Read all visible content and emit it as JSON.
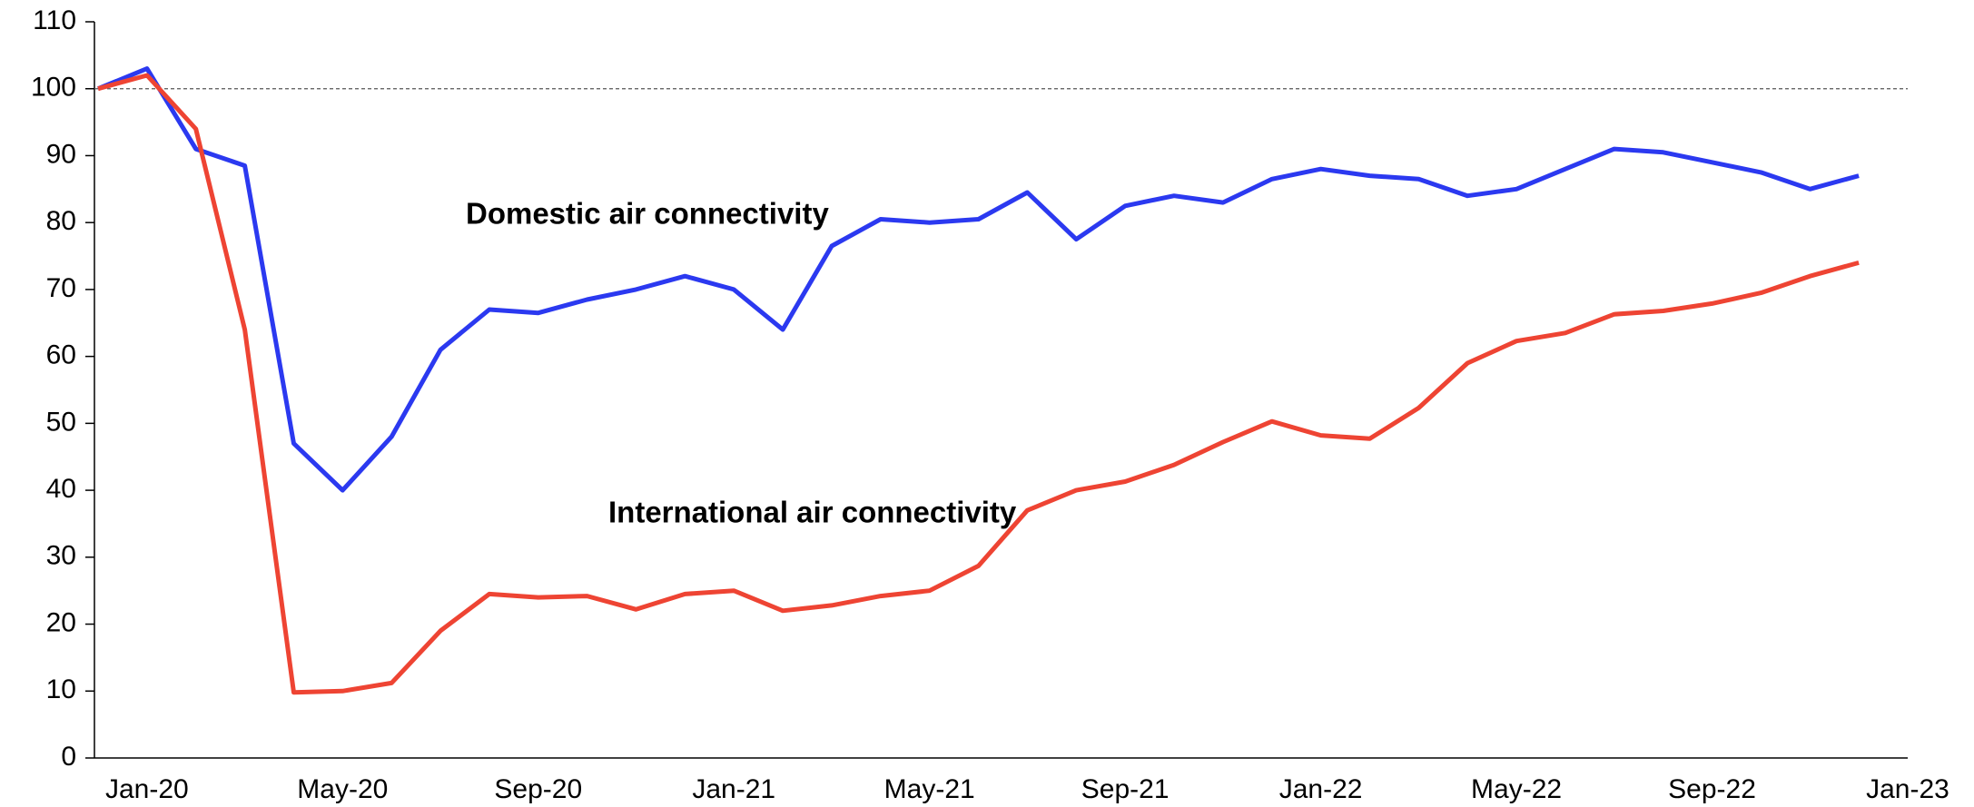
{
  "chart_data": {
    "type": "line",
    "categories": [
      null,
      "Jan-20",
      null,
      null,
      null,
      "May-20",
      null,
      null,
      null,
      "Sep-20",
      null,
      null,
      null,
      "Jan-21",
      null,
      null,
      null,
      "May-21",
      null,
      null,
      null,
      "Sep-21",
      null,
      null,
      null,
      "Jan-22",
      null,
      null,
      null,
      "May-22",
      null,
      null,
      null,
      "Sep-22",
      null,
      null,
      null,
      "Jan-23"
    ],
    "series": [
      {
        "name": "Domestic air connectivity",
        "color": "#2b39f0",
        "values": [
          100,
          103,
          91,
          88.5,
          47,
          40,
          48,
          61,
          67,
          66.5,
          68.5,
          70,
          72,
          70,
          64,
          76.5,
          80.5,
          80,
          80.5,
          84.5,
          77.5,
          82.5,
          84,
          83,
          86.5,
          88,
          87,
          86.5,
          84,
          85,
          88,
          91,
          90.5,
          89,
          87.5,
          85,
          87,
          null
        ]
      },
      {
        "name": "International air connectivity",
        "color": "#ee4433",
        "values": [
          100,
          102,
          94,
          64,
          9.8,
          10,
          11.2,
          19,
          24.5,
          24,
          24.2,
          22.2,
          24.5,
          25,
          22,
          22.8,
          24.2,
          25,
          28.7,
          37,
          40,
          41.3,
          43.8,
          47.2,
          50.3,
          48.2,
          47.7,
          52.3,
          59,
          62.3,
          63.5,
          66.3,
          66.8,
          67.9,
          69.5,
          72,
          74,
          null
        ]
      }
    ],
    "ylim": [
      0,
      110
    ],
    "yticks": [
      0,
      10,
      20,
      30,
      40,
      50,
      60,
      70,
      80,
      90,
      100,
      110
    ],
    "reference_line": 100
  }
}
